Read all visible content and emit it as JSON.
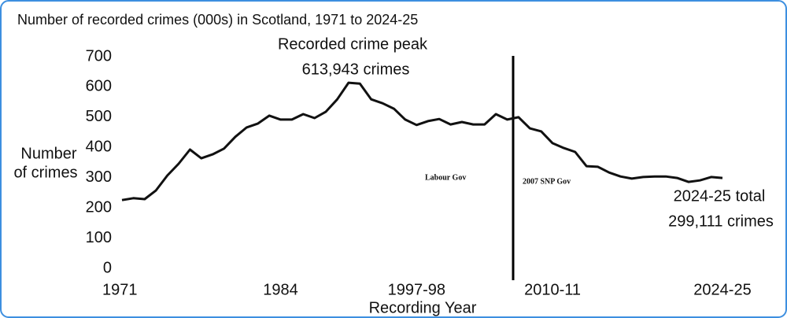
{
  "chart_data": {
    "type": "line",
    "title": "Number of recorded crimes (000s) in Scotland, 1971 to 2024-25",
    "x_label": "Recording Year",
    "y_label": [
      "Number",
      "of crimes"
    ],
    "annotations": {
      "peak": [
        "Recorded crime peak",
        "613,943 crimes"
      ],
      "latest": [
        "2024-25 total",
        "299,111 crimes"
      ],
      "left_period": "Labour Gov",
      "right_period": "2007 SNP Gov"
    },
    "categories": [
      "1971",
      null,
      null,
      null,
      null,
      null,
      null,
      null,
      null,
      null,
      null,
      null,
      null,
      null,
      "1984",
      null,
      null,
      null,
      null,
      null,
      null,
      null,
      null,
      null,
      null,
      null,
      "1997-98",
      null,
      null,
      null,
      null,
      null,
      null,
      null,
      null,
      null,
      null,
      null,
      "2010-11",
      null,
      null,
      null,
      null,
      null,
      null,
      null,
      null,
      null,
      null,
      null,
      null,
      null,
      null,
      "2024-25"
    ],
    "series": [
      {
        "name": "Recorded crimes",
        "color": "#111111",
        "values": [
          226,
          232,
          229,
          258,
          307,
          346,
          393,
          364,
          377,
          396,
          435,
          466,
          479,
          505,
          492,
          492,
          510,
          497,
          518,
          559,
          613.943,
          611,
          559,
          546,
          528,
          492,
          474,
          487,
          494,
          476,
          484,
          476,
          476,
          510,
          492,
          500,
          463,
          453,
          414,
          398,
          385,
          338,
          336,
          317,
          304,
          297,
          302,
          304,
          304,
          299,
          286,
          291,
          302,
          299.111
        ]
      }
    ],
    "ylim": [
      0,
      700
    ],
    "yticks": [
      0,
      100,
      200,
      300,
      400,
      500,
      600,
      700
    ],
    "grid": false
  }
}
